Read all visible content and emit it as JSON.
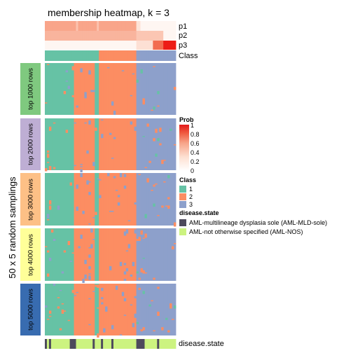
{
  "chart_data": {
    "type": "heatmap",
    "title": "membership heatmap, k = 3",
    "ylabel": "50 x 5 random samplings",
    "n_samples": 63,
    "annotation_rows": [
      "p1",
      "p2",
      "p3",
      "Class"
    ],
    "bottom_annotation_label": "disease.state",
    "groups": [
      "top 1000 rows",
      "top 2000 rows",
      "top 3000 rows",
      "top 4000 rows",
      "top 5000 rows"
    ],
    "group_colors": [
      "#7fc97f",
      "#beaed4",
      "#fdc086",
      "#ffff99",
      "#386cb0"
    ],
    "class_colors": {
      "1": "#66c2a5",
      "2": "#fc8d62",
      "3": "#8da0cb"
    },
    "class_order": [
      1,
      1,
      1,
      1,
      1,
      1,
      1,
      1,
      1,
      1,
      1,
      1,
      1,
      1,
      1,
      1,
      1,
      1,
      1,
      1,
      1,
      1,
      1,
      1,
      1,
      1,
      2,
      2,
      2,
      2,
      2,
      2,
      2,
      2,
      2,
      2,
      2,
      2,
      2,
      2,
      2,
      2,
      2,
      2,
      3,
      3,
      3,
      3,
      3,
      3,
      3,
      3,
      3,
      3,
      3,
      3,
      3,
      3,
      3,
      3,
      3,
      3,
      3
    ],
    "heat_pattern": [
      1,
      1,
      1,
      1,
      1,
      1,
      1,
      1,
      1,
      1,
      1,
      1,
      1,
      1,
      2,
      2,
      2,
      2,
      2,
      2,
      2,
      2,
      2,
      2,
      1,
      1,
      2,
      2,
      2,
      2,
      2,
      2,
      2,
      2,
      2,
      2,
      2,
      2,
      2,
      2,
      2,
      2,
      2,
      2,
      3,
      3,
      3,
      3,
      3,
      3,
      3,
      3,
      3,
      3,
      3,
      3,
      3,
      3,
      3,
      3,
      3,
      3,
      3
    ],
    "disease_state": [
      1,
      0,
      1,
      0,
      0,
      0,
      0,
      0,
      0,
      0,
      0,
      0,
      1,
      1,
      1,
      0,
      0,
      0,
      0,
      0,
      0,
      0,
      0,
      1,
      0,
      0,
      0,
      1,
      0,
      0,
      0,
      0,
      1,
      0,
      0,
      0,
      0,
      0,
      0,
      0,
      0,
      0,
      0,
      0,
      1,
      1,
      1,
      1,
      0,
      0,
      0,
      0,
      0,
      0,
      1,
      0,
      0,
      0,
      0,
      0,
      0,
      0,
      0
    ],
    "disease_state_colors": [
      "#ccf380",
      "#4d4a5c"
    ],
    "p3_high_start": 57,
    "legend": {
      "prob": {
        "title": "Prob",
        "ticks": [
          "1",
          "0.8",
          "0.6",
          "0.4",
          "0.2",
          "0"
        ]
      },
      "class": {
        "title": "Class",
        "labels": [
          "1",
          "2",
          "3"
        ]
      },
      "disease": {
        "title": "disease.state",
        "labels": [
          "AML-multilineage dysplasia sole (AML-MLD-sole)",
          "AML-not otherwise specified (AML-NOS)"
        ]
      }
    }
  }
}
